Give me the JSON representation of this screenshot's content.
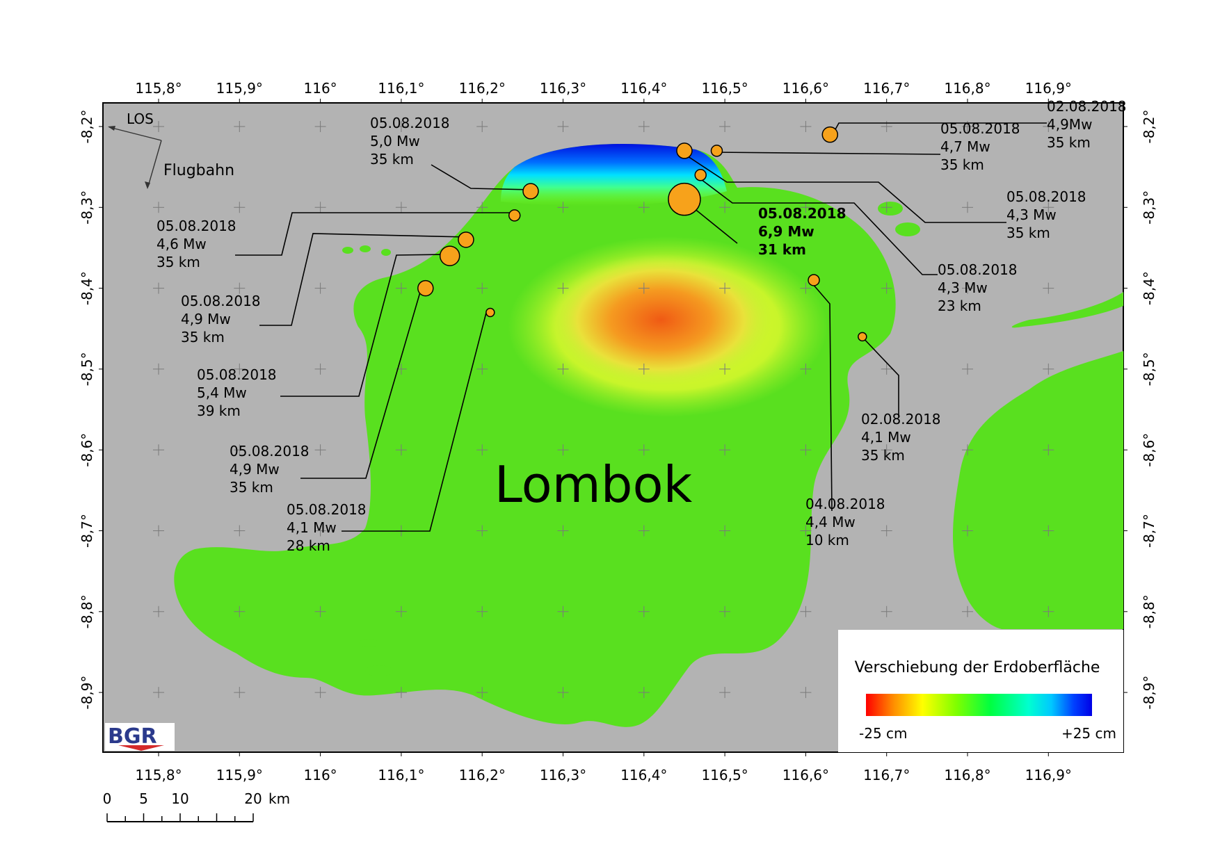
{
  "map": {
    "place_label": "Lombok",
    "los_label": "LOS",
    "flight_label": "Flugbahn",
    "logo_text": "BGR",
    "lon_ticks": [
      "115,8°",
      "115,9°",
      "116°",
      "116,1°",
      "116,2°",
      "116,3°",
      "116,4°",
      "116,5°",
      "116,6°",
      "116,7°",
      "116,8°",
      "116,9°"
    ],
    "lat_ticks": [
      "-8,2°",
      "-8,3°",
      "-8,4°",
      "-8,5°",
      "-8,6°",
      "-8,7°",
      "-8,8°",
      "-8,9°"
    ],
    "lon_values": [
      115.8,
      115.9,
      116.0,
      116.1,
      116.2,
      116.3,
      116.4,
      116.5,
      116.6,
      116.7,
      116.8,
      116.9
    ],
    "lat_values": [
      -8.2,
      -8.3,
      -8.4,
      -8.5,
      -8.6,
      -8.7,
      -8.8,
      -8.9
    ],
    "scale_bar": {
      "labels": [
        "0",
        "5",
        "10",
        "20"
      ],
      "values_km": [
        0,
        5,
        10,
        20
      ],
      "unit": "km"
    },
    "legend": {
      "title": "Verschiebung der Erdoberfläche",
      "min_label": "-25 cm",
      "max_label": "+25 cm",
      "colors": [
        "#ff0000",
        "#ff8c00",
        "#ffff00",
        "#7fff00",
        "#00ff40",
        "#00ffd0",
        "#00c8ff",
        "#0040ff",
        "#0000e6"
      ]
    },
    "colors": {
      "background": "#b3b3b3",
      "land": "#59e01f",
      "quake_marker": "#f7a21b"
    },
    "earthquakes": [
      {
        "date": "02.08.2018",
        "magnitude": "4,9Mw",
        "depth": "35 km",
        "lon": 116.63,
        "lat": -8.21,
        "size": "medium",
        "bold": false
      },
      {
        "date": "05.08.2018",
        "magnitude": "4,7 Mw",
        "depth": "35 km",
        "lon": 116.49,
        "lat": -8.23,
        "size": "small",
        "bold": false
      },
      {
        "date": "05.08.2018",
        "magnitude": "4,3 Mw",
        "depth": "35 km",
        "lon": 116.45,
        "lat": -8.23,
        "size": "medium",
        "bold": false
      },
      {
        "date": "05.08.2018",
        "magnitude": "4,3 Mw",
        "depth": "23 km",
        "lon": 116.47,
        "lat": -8.26,
        "size": "small",
        "bold": false
      },
      {
        "date": "05.08.2018",
        "magnitude": "6,9 Mw",
        "depth": "31 km",
        "lon": 116.45,
        "lat": -8.29,
        "size": "large",
        "bold": true
      },
      {
        "date": "05.08.2018",
        "magnitude": "5,0 Mw",
        "depth": "35 km",
        "lon": 116.26,
        "lat": -8.28,
        "size": "medium",
        "bold": false
      },
      {
        "date": "05.08.2018",
        "magnitude": "4,6 Mw",
        "depth": "35 km",
        "lon": 116.24,
        "lat": -8.31,
        "size": "small",
        "bold": false
      },
      {
        "date": "05.08.2018",
        "magnitude": "4,9 Mw",
        "depth": "35 km",
        "lon": 116.18,
        "lat": -8.34,
        "size": "medium",
        "bold": false
      },
      {
        "date": "05.08.2018",
        "magnitude": "5,4 Mw",
        "depth": "39 km",
        "lon": 116.16,
        "lat": -8.36,
        "size": "mlarge",
        "bold": false
      },
      {
        "date": "05.08.2018",
        "magnitude": "4,9 Mw",
        "depth": "35 km",
        "lon": 116.13,
        "lat": -8.4,
        "size": "medium",
        "bold": false
      },
      {
        "date": "05.08.2018",
        "magnitude": "4,1 Mw",
        "depth": "28 km",
        "lon": 116.21,
        "lat": -8.43,
        "size": "tiny",
        "bold": false
      },
      {
        "date": "04.08.2018",
        "magnitude": "4,4 Mw",
        "depth": "10 km",
        "lon": 116.61,
        "lat": -8.39,
        "size": "small",
        "bold": false
      },
      {
        "date": "02.08.2018",
        "magnitude": "4,1 Mw",
        "depth": "35 km",
        "lon": 116.67,
        "lat": -8.46,
        "size": "tiny",
        "bold": false
      }
    ]
  }
}
